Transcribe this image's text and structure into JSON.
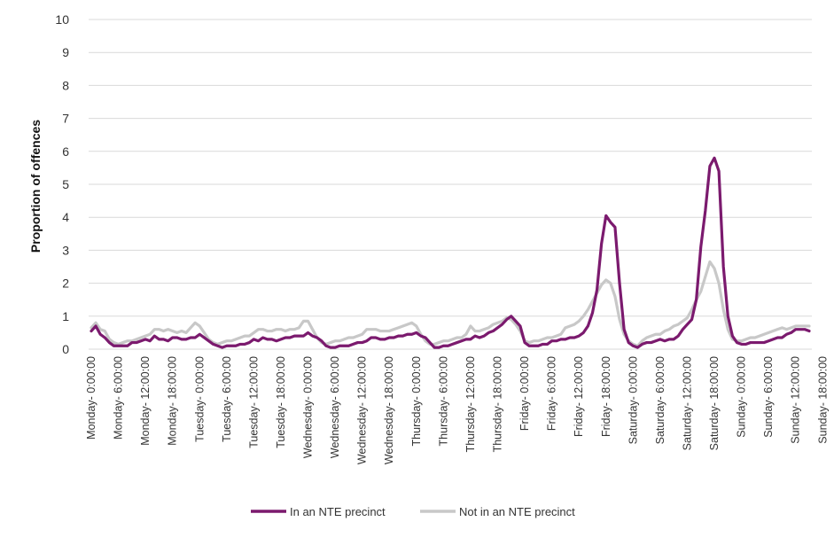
{
  "chart_data": {
    "type": "line",
    "title": "",
    "ylabel": "Proportion of offences",
    "xlabel": "",
    "ylim": [
      0,
      10
    ],
    "yticks": [
      0,
      1,
      2,
      3,
      4,
      5,
      6,
      7,
      8,
      9,
      10
    ],
    "grid": true,
    "legend_position": "bottom",
    "x_labels": [
      "Monday- 0:00:00",
      "Monday- 6:00:00",
      "Monday- 12:00:00",
      "Monday- 18:00:00",
      "Tuesday- 0:00:00",
      "Tuesday- 6:00:00",
      "Tuesday- 12:00:00",
      "Tuesday- 18:00:00",
      "Wednesday- 0:00:00",
      "Wednesday- 6:00:00",
      "Wednesday- 12:00:00",
      "Wednesday- 18:00:00",
      "Thursday- 0:00:00",
      "Thursday- 6:00:00",
      "Thursday- 12:00:00",
      "Thursday- 18:00:00",
      "Friday- 0:00:00",
      "Friday- 6:00:00",
      "Friday- 12:00:00",
      "Friday- 18:00:00",
      "Saturday- 0:00:00",
      "Saturday- 6:00:00",
      "Saturday- 12:00:00",
      "Saturday- 18:00:00",
      "Sunday- 0:00:00",
      "Sunday- 6:00:00",
      "Sunday- 12:00:00",
      "Sunday- 18:00:00"
    ],
    "x_points_per_label": 6,
    "series": [
      {
        "name": "In an NTE precinct",
        "color": "#7b1a6e",
        "values": [
          0.55,
          0.7,
          0.45,
          0.35,
          0.2,
          0.1,
          0.1,
          0.1,
          0.1,
          0.2,
          0.2,
          0.25,
          0.3,
          0.25,
          0.4,
          0.3,
          0.3,
          0.25,
          0.35,
          0.35,
          0.3,
          0.3,
          0.35,
          0.35,
          0.45,
          0.35,
          0.25,
          0.15,
          0.1,
          0.05,
          0.1,
          0.1,
          0.1,
          0.15,
          0.15,
          0.2,
          0.3,
          0.25,
          0.35,
          0.3,
          0.3,
          0.25,
          0.3,
          0.35,
          0.35,
          0.4,
          0.4,
          0.4,
          0.5,
          0.4,
          0.35,
          0.25,
          0.1,
          0.05,
          0.05,
          0.1,
          0.1,
          0.1,
          0.15,
          0.2,
          0.2,
          0.25,
          0.35,
          0.35,
          0.3,
          0.3,
          0.35,
          0.35,
          0.4,
          0.4,
          0.45,
          0.45,
          0.5,
          0.4,
          0.35,
          0.2,
          0.05,
          0.05,
          0.1,
          0.1,
          0.15,
          0.2,
          0.25,
          0.3,
          0.3,
          0.4,
          0.35,
          0.4,
          0.5,
          0.55,
          0.65,
          0.75,
          0.9,
          1.0,
          0.85,
          0.7,
          0.2,
          0.1,
          0.1,
          0.1,
          0.15,
          0.15,
          0.25,
          0.25,
          0.3,
          0.3,
          0.35,
          0.35,
          0.4,
          0.5,
          0.7,
          1.1,
          1.8,
          3.2,
          4.05,
          3.85,
          3.7,
          2.0,
          0.6,
          0.2,
          0.1,
          0.05,
          0.15,
          0.2,
          0.2,
          0.25,
          0.3,
          0.25,
          0.3,
          0.3,
          0.4,
          0.6,
          0.75,
          0.9,
          1.5,
          3.1,
          4.2,
          5.55,
          5.8,
          5.4,
          2.5,
          1.0,
          0.4,
          0.2,
          0.15,
          0.15,
          0.2,
          0.2,
          0.2,
          0.2,
          0.25,
          0.3,
          0.35,
          0.35,
          0.45,
          0.5,
          0.6,
          0.6,
          0.6,
          0.55
        ]
      },
      {
        "name": "Not in an NTE precinct",
        "color": "#c8c8c8",
        "values": [
          0.65,
          0.8,
          0.6,
          0.55,
          0.3,
          0.2,
          0.15,
          0.2,
          0.25,
          0.25,
          0.3,
          0.35,
          0.4,
          0.45,
          0.6,
          0.6,
          0.55,
          0.6,
          0.55,
          0.5,
          0.55,
          0.5,
          0.65,
          0.8,
          0.7,
          0.5,
          0.3,
          0.2,
          0.15,
          0.2,
          0.25,
          0.25,
          0.3,
          0.35,
          0.4,
          0.4,
          0.5,
          0.6,
          0.6,
          0.55,
          0.55,
          0.6,
          0.6,
          0.55,
          0.6,
          0.6,
          0.65,
          0.85,
          0.85,
          0.6,
          0.35,
          0.2,
          0.15,
          0.2,
          0.25,
          0.25,
          0.3,
          0.35,
          0.35,
          0.4,
          0.45,
          0.6,
          0.6,
          0.6,
          0.55,
          0.55,
          0.55,
          0.6,
          0.65,
          0.7,
          0.75,
          0.8,
          0.7,
          0.45,
          0.25,
          0.15,
          0.15,
          0.2,
          0.25,
          0.25,
          0.3,
          0.35,
          0.35,
          0.45,
          0.7,
          0.55,
          0.55,
          0.6,
          0.65,
          0.75,
          0.8,
          0.85,
          0.95,
          0.9,
          0.75,
          0.55,
          0.25,
          0.2,
          0.25,
          0.25,
          0.3,
          0.35,
          0.35,
          0.4,
          0.45,
          0.65,
          0.7,
          0.75,
          0.85,
          1.0,
          1.2,
          1.45,
          1.7,
          1.95,
          2.1,
          2.0,
          1.6,
          0.9,
          0.45,
          0.25,
          0.15,
          0.1,
          0.25,
          0.35,
          0.4,
          0.45,
          0.45,
          0.55,
          0.6,
          0.7,
          0.75,
          0.85,
          0.95,
          1.2,
          1.5,
          1.75,
          2.2,
          2.65,
          2.45,
          2.0,
          1.2,
          0.6,
          0.3,
          0.25,
          0.25,
          0.3,
          0.35,
          0.35,
          0.4,
          0.45,
          0.5,
          0.55,
          0.6,
          0.65,
          0.6,
          0.65,
          0.7,
          0.7,
          0.7,
          0.7
        ]
      }
    ]
  }
}
